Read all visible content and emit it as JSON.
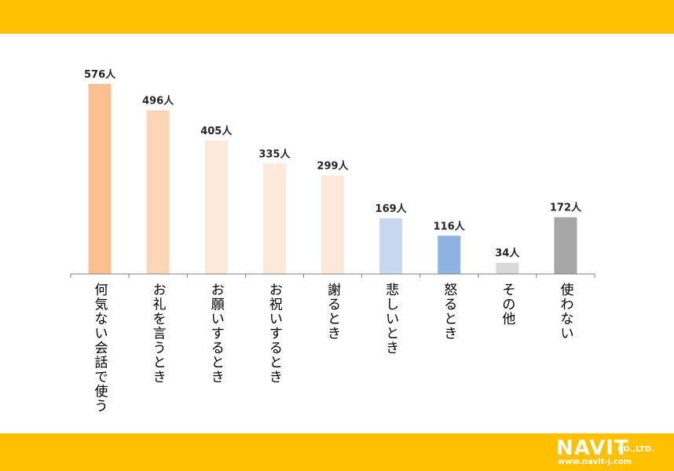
{
  "colors": {
    "band": "#FFC000"
  },
  "logo": {
    "brand": "NAVIT",
    "suffix": "CO.,LTD.",
    "url": "www.navit-j.com"
  },
  "chart_data": {
    "type": "bar",
    "title": "",
    "xlabel": "",
    "ylabel": "",
    "ylim": [
      0,
      700
    ],
    "grid": false,
    "categories": [
      "何気ない会話で使う",
      "お礼を言うとき",
      "お願いするとき",
      "お祝いするとき",
      "謝るとき",
      "悲しいとき",
      "怒るとき",
      "その他",
      "使わない"
    ],
    "values": [
      576,
      496,
      405,
      335,
      299,
      169,
      116,
      34,
      172
    ],
    "value_labels": [
      "576人",
      "496人",
      "405人",
      "335人",
      "299人",
      "169人",
      "116人",
      "34人",
      "172人"
    ],
    "bar_colors": [
      "#FAC090",
      "#FBD5B5",
      "#FDE9D9",
      "#FDE9D9",
      "#FDE9D9",
      "#C6D9F1",
      "#8DB4E2",
      "#D9D9D9",
      "#A6A6A6"
    ]
  }
}
